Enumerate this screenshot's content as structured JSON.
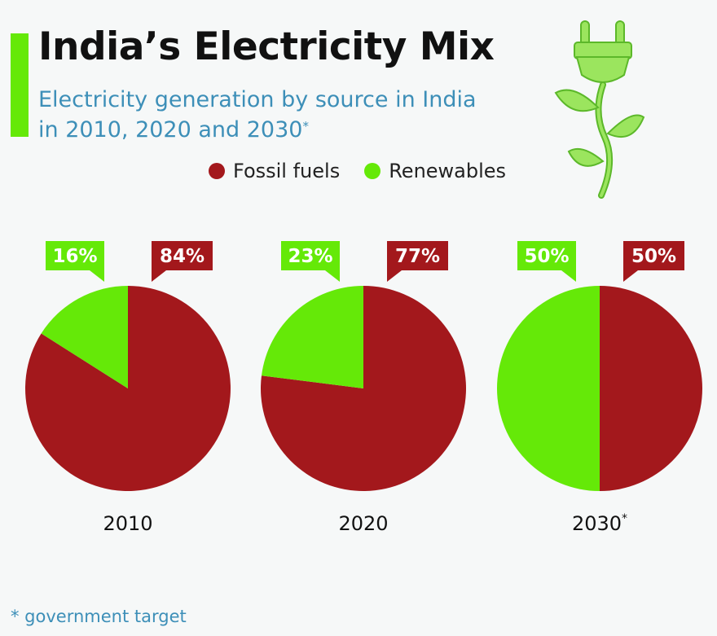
{
  "header": {
    "title": "India’s Electricity Mix",
    "subtitle_line1": "Electricity generation by source in India",
    "subtitle_line2": "in 2010, 2020 and 2030",
    "subtitle_mark": "*"
  },
  "footnote": "* government target",
  "colors": {
    "accent": "#65e908",
    "fossil": "#a3181c",
    "renewable": "#65e908"
  },
  "icons": [
    "plug-plant-icon"
  ],
  "chart_data": {
    "type": "pie",
    "legend": [
      {
        "name": "Fossil fuels",
        "color": "#a3181c"
      },
      {
        "name": "Renewables",
        "color": "#65e908"
      }
    ],
    "legend_position": "top",
    "charts": [
      {
        "year": "2010",
        "mark": "",
        "renewables": 16,
        "fossil": 84,
        "renewables_label": "16%",
        "fossil_label": "84%"
      },
      {
        "year": "2020",
        "mark": "",
        "renewables": 23,
        "fossil": 77,
        "renewables_label": "23%",
        "fossil_label": "77%"
      },
      {
        "year": "2030",
        "mark": "*",
        "renewables": 50,
        "fossil": 50,
        "renewables_label": "50%",
        "fossil_label": "50%"
      }
    ]
  }
}
